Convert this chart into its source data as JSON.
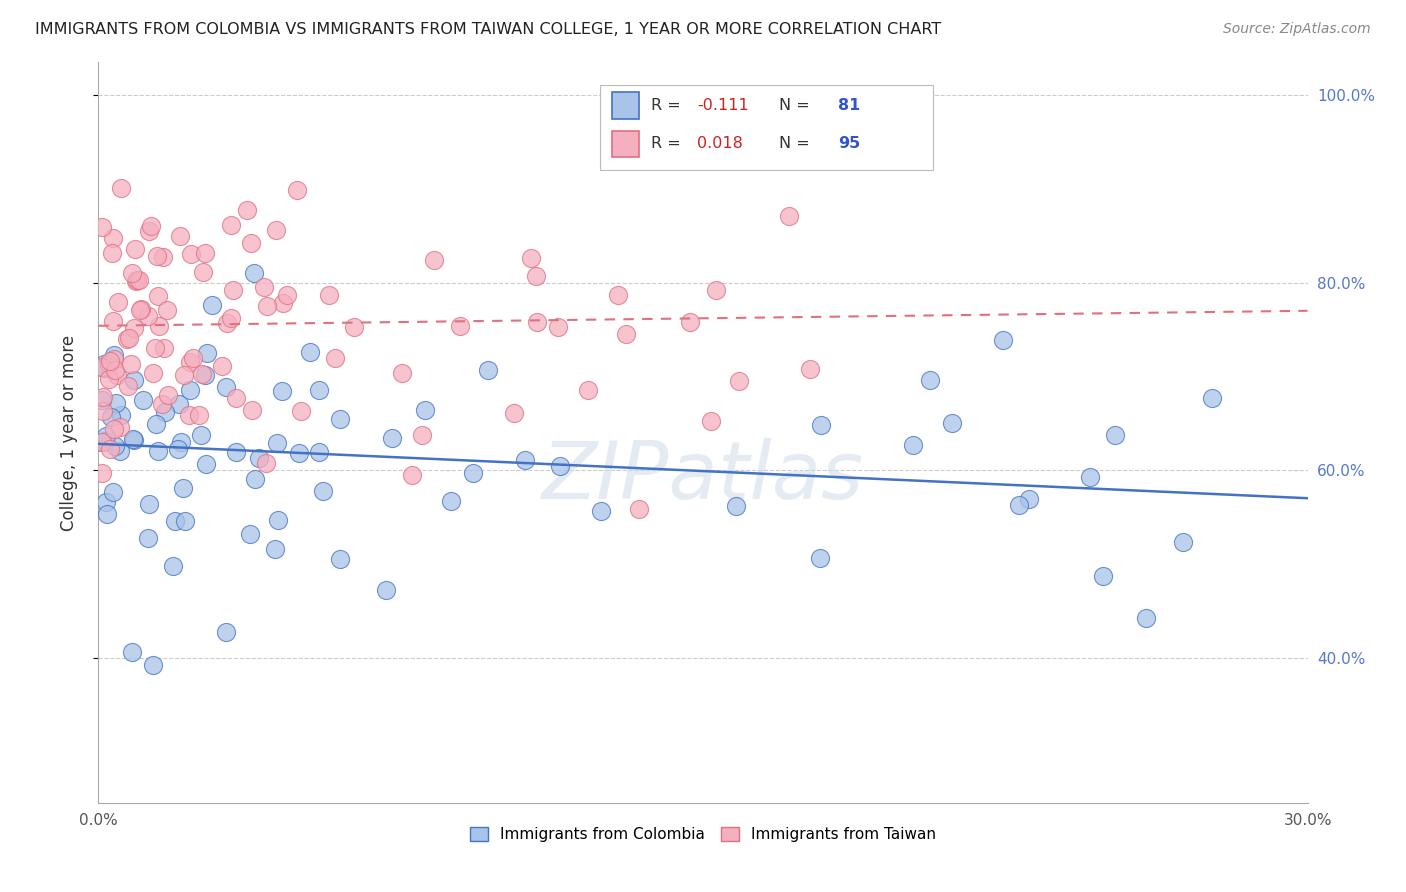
{
  "title": "IMMIGRANTS FROM COLOMBIA VS IMMIGRANTS FROM TAIWAN COLLEGE, 1 YEAR OR MORE CORRELATION CHART",
  "source": "Source: ZipAtlas.com",
  "ylabel": "College, 1 year or more",
  "xmin": 0.0,
  "xmax": 0.3,
  "ymin": 0.245,
  "ymax": 1.035,
  "color_colombia": "#a8c4e8",
  "color_taiwan": "#f4afc0",
  "color_colombia_line": "#4472c4",
  "color_taiwan_line": "#e07080",
  "color_grid": "#cccccc",
  "watermark": "ZIPatlas",
  "legend_box_color": "#f0f0f0",
  "colombia_trend": [
    0.628,
    0.57
  ],
  "taiwan_trend": [
    0.754,
    0.77
  ],
  "taiwan_trend_xmax": 0.3,
  "seed": 17
}
